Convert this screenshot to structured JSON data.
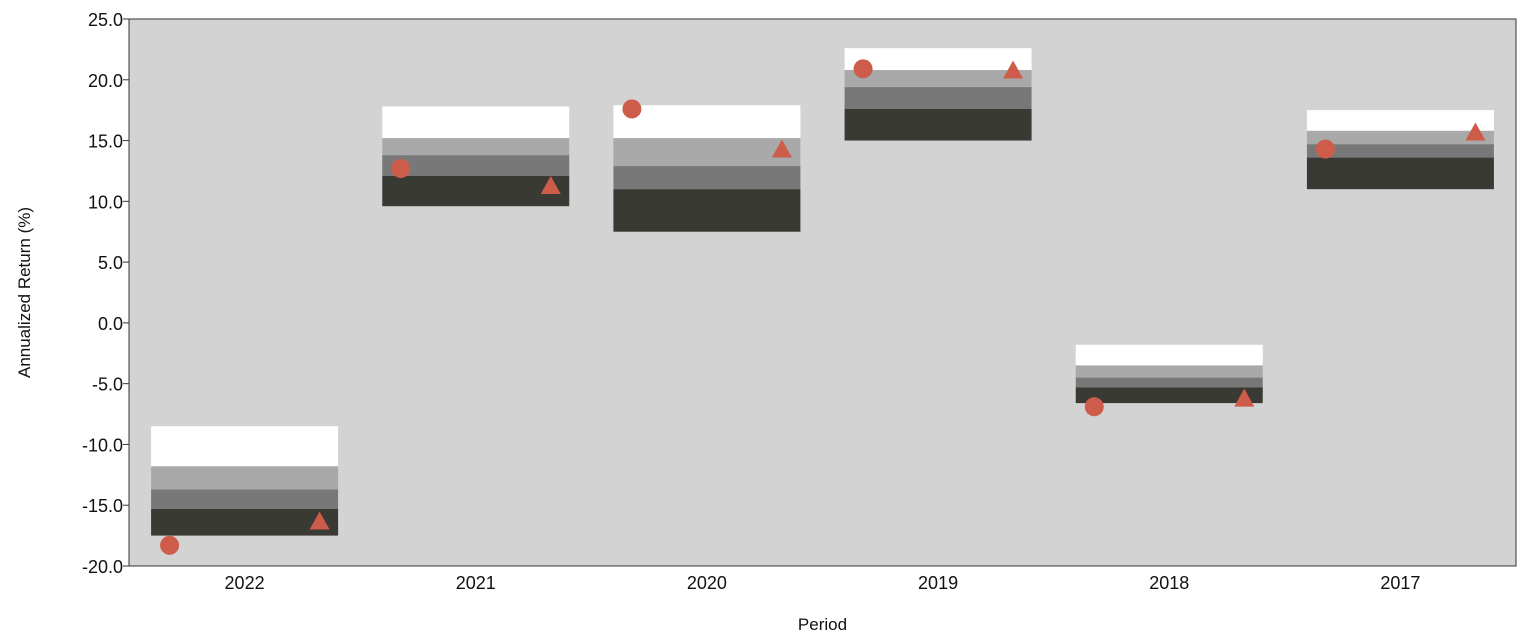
{
  "chart_data": {
    "type": "box",
    "title": "",
    "xlabel": "Period",
    "ylabel": "Annualized Return (%)",
    "ylim": [
      -20,
      25
    ],
    "yticks": [
      "25.0",
      "20.0",
      "15.0",
      "10.0",
      "5.0",
      "0.0",
      "-5.0",
      "-10.0",
      "-15.0",
      "-20.0"
    ],
    "ytick_values": [
      25,
      20,
      15,
      10,
      5,
      0,
      -5,
      -10,
      -15,
      -20
    ],
    "categories": [
      "2022",
      "2021",
      "2020",
      "2019",
      "2018",
      "2017"
    ],
    "band_colors": [
      "#ffffff",
      "#a9a9a9",
      "#787878",
      "#3a3a35"
    ],
    "plot_background": "#d3d3d3",
    "marker_color": "#cd5c4a",
    "boxes": [
      {
        "period": "2022",
        "bands": [
          -8.5,
          -11.8,
          -13.7,
          -15.3,
          -17.5
        ]
      },
      {
        "period": "2021",
        "bands": [
          17.8,
          15.2,
          13.8,
          12.1,
          9.6
        ]
      },
      {
        "period": "2020",
        "bands": [
          17.9,
          15.2,
          12.9,
          11.0,
          7.5
        ]
      },
      {
        "period": "2019",
        "bands": [
          22.6,
          20.8,
          19.4,
          17.6,
          15.0
        ]
      },
      {
        "period": "2018",
        "bands": [
          -1.8,
          -3.5,
          -4.5,
          -5.3,
          -6.6
        ]
      },
      {
        "period": "2017",
        "bands": [
          17.5,
          15.8,
          14.7,
          13.6,
          11.0
        ]
      }
    ],
    "series": [
      {
        "marker": "circle",
        "values": [
          -18.3,
          12.7,
          17.6,
          20.9,
          -6.9,
          14.3
        ]
      },
      {
        "marker": "triangle",
        "values": [
          -16.4,
          11.2,
          14.2,
          20.7,
          -6.3,
          15.6
        ]
      }
    ]
  }
}
